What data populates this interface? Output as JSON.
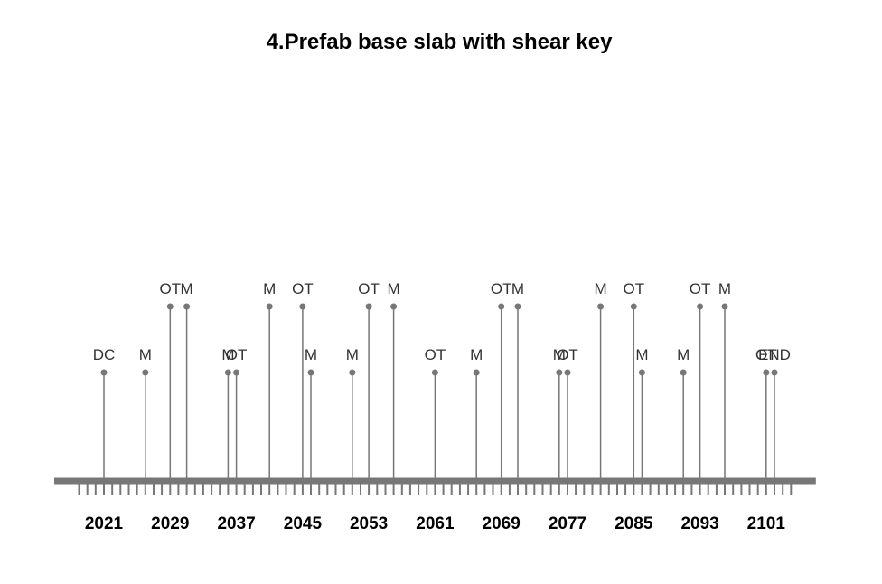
{
  "chart_data": {
    "type": "timeline",
    "title": "4.Prefab base slab with shear key",
    "xlim": [
      2015,
      2107
    ],
    "tick_labels": [
      2021,
      2029,
      2037,
      2045,
      2053,
      2061,
      2069,
      2077,
      2085,
      2093,
      2101
    ],
    "minor_ticks": {
      "start": 2018,
      "end": 2104,
      "step": 1
    },
    "colors": {
      "axis": "#777777",
      "stem": "#777777",
      "point": "#777777",
      "label": "#333333"
    },
    "events": [
      {
        "year": 2021,
        "label": "DC",
        "level": "low"
      },
      {
        "year": 2026,
        "label": "M",
        "level": "low"
      },
      {
        "year": 2029,
        "label": "OT",
        "level": "high"
      },
      {
        "year": 2031,
        "label": "M",
        "level": "high"
      },
      {
        "year": 2036,
        "label": "M",
        "level": "low"
      },
      {
        "year": 2037,
        "label": "OT",
        "level": "low"
      },
      {
        "year": 2041,
        "label": "M",
        "level": "high"
      },
      {
        "year": 2045,
        "label": "OT",
        "level": "high"
      },
      {
        "year": 2046,
        "label": "M",
        "level": "low"
      },
      {
        "year": 2051,
        "label": "M",
        "level": "low"
      },
      {
        "year": 2053,
        "label": "OT",
        "level": "high"
      },
      {
        "year": 2056,
        "label": "M",
        "level": "high"
      },
      {
        "year": 2061,
        "label": "OT",
        "level": "low"
      },
      {
        "year": 2066,
        "label": "M",
        "level": "low"
      },
      {
        "year": 2069,
        "label": "OT",
        "level": "high"
      },
      {
        "year": 2071,
        "label": "M",
        "level": "high"
      },
      {
        "year": 2076,
        "label": "M",
        "level": "low"
      },
      {
        "year": 2077,
        "label": "OT",
        "level": "low"
      },
      {
        "year": 2081,
        "label": "M",
        "level": "high"
      },
      {
        "year": 2085,
        "label": "OT",
        "level": "high"
      },
      {
        "year": 2086,
        "label": "M",
        "level": "low"
      },
      {
        "year": 2091,
        "label": "M",
        "level": "low"
      },
      {
        "year": 2093,
        "label": "OT",
        "level": "high"
      },
      {
        "year": 2096,
        "label": "M",
        "level": "high"
      },
      {
        "year": 2101,
        "label": "OT",
        "level": "low"
      },
      {
        "year": 2102,
        "label": "END",
        "level": "low"
      }
    ]
  }
}
